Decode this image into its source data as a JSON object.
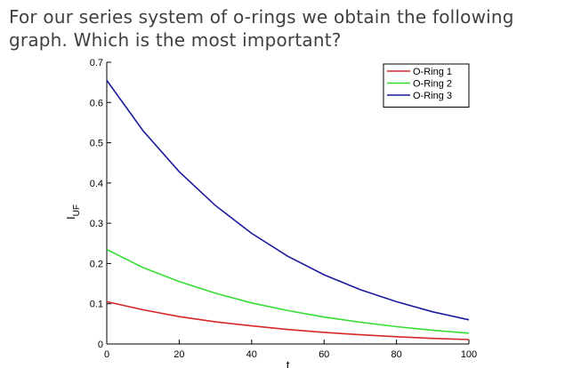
{
  "slide": {
    "question": "For our series system of o-rings we obtain the following graph. Which is the most important?"
  },
  "chart_data": {
    "type": "line",
    "title": "",
    "xlabel": "t",
    "ylabel": "I_UF",
    "xlim": [
      0,
      100
    ],
    "ylim": [
      0,
      0.7
    ],
    "x_ticks": [
      "0",
      "20",
      "40",
      "60",
      "80",
      "100"
    ],
    "y_ticks": [
      "0",
      "0.1",
      "0.2",
      "0.3",
      "0.4",
      "0.5",
      "0.6",
      "0.7"
    ],
    "grid": false,
    "legend_position": "top-right",
    "x": [
      0,
      10,
      20,
      30,
      40,
      50,
      60,
      70,
      80,
      90,
      100
    ],
    "series": [
      {
        "name": "O-Ring 1",
        "color": "#d62728",
        "values": [
          0.105,
          0.085,
          0.068,
          0.055,
          0.045,
          0.036,
          0.029,
          0.023,
          0.018,
          0.014,
          0.011
        ]
      },
      {
        "name": "O-Ring 2",
        "color": "#33dd33",
        "values": [
          0.235,
          0.19,
          0.155,
          0.126,
          0.102,
          0.083,
          0.067,
          0.054,
          0.043,
          0.034,
          0.027
        ]
      },
      {
        "name": "O-Ring 3",
        "color": "#1a1a9c",
        "values": [
          0.655,
          0.53,
          0.428,
          0.344,
          0.275,
          0.218,
          0.172,
          0.135,
          0.105,
          0.08,
          0.06
        ]
      }
    ]
  }
}
